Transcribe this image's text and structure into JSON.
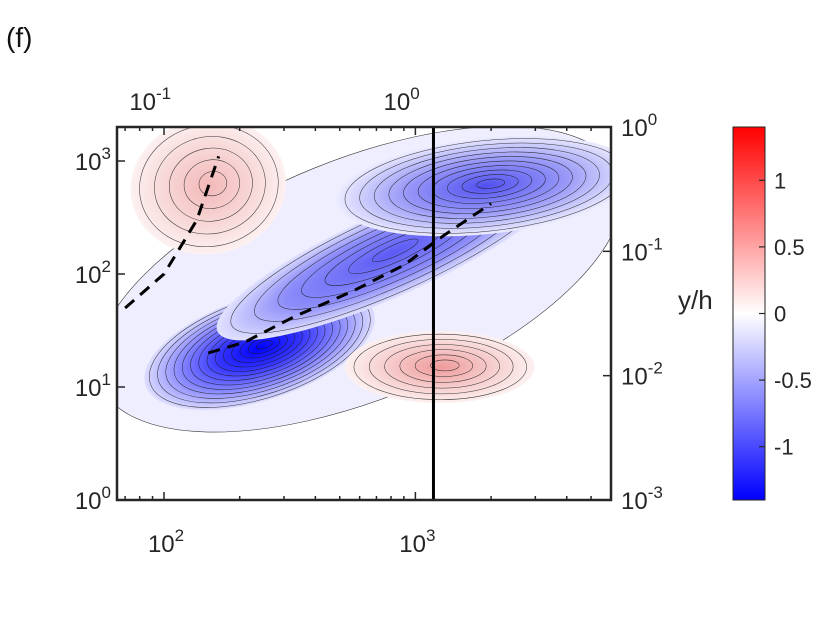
{
  "panel_label": "(f)",
  "chart_data": {
    "type": "heatmap",
    "subtype": "filled-contour",
    "panel": "(f)",
    "x_scale": "log",
    "y_scale": "log",
    "xlim": [
      65,
      6000
    ],
    "ylim": [
      1,
      2000
    ],
    "x_ticks": [
      {
        "value": 100,
        "label": "10",
        "exp": "2"
      },
      {
        "value": 1000,
        "label": "10",
        "exp": "3"
      }
    ],
    "y_ticks": [
      {
        "value": 1,
        "label": "10",
        "exp": "0"
      },
      {
        "value": 10,
        "label": "10",
        "exp": "1"
      },
      {
        "value": 100,
        "label": "10",
        "exp": "2"
      },
      {
        "value": 1000,
        "label": "10",
        "exp": "3"
      }
    ],
    "top_axis": {
      "scale": "log",
      "ticks": [
        {
          "value": 0.1,
          "label": "10",
          "exp": "-1"
        },
        {
          "value": 1,
          "label": "10",
          "exp": "0"
        }
      ]
    },
    "right_axis": {
      "label": "y/h",
      "scale": "log",
      "ticks": [
        {
          "value": 0.001,
          "label": "10",
          "exp": "-3"
        },
        {
          "value": 0.01,
          "label": "10",
          "exp": "-2"
        },
        {
          "value": 0.1,
          "label": "10",
          "exp": "-1"
        },
        {
          "value": 1,
          "label": "10",
          "exp": "0"
        }
      ]
    },
    "colorbar": {
      "range": [
        -1.4,
        1.4
      ],
      "colormap": [
        "#0000ff",
        "#ffffff",
        "#ff0000"
      ],
      "ticks": [
        {
          "value": 1,
          "label": "1"
        },
        {
          "value": 0.5,
          "label": "0.5"
        },
        {
          "value": 0,
          "label": "0"
        },
        {
          "value": -0.5,
          "label": "-0.5"
        },
        {
          "value": -1,
          "label": "-1"
        }
      ]
    },
    "vertical_line_x": 1180,
    "dashed_lines": [
      {
        "x": [
          70,
          100,
          135,
          165
        ],
        "y": [
          50,
          100,
          300,
          1100
        ]
      },
      {
        "x": [
          150,
          210,
          330,
          560,
          900,
          1300,
          2000
        ],
        "y": [
          20,
          25,
          42,
          70,
          120,
          220,
          420
        ]
      }
    ],
    "contour_blobs": [
      {
        "region": "main-negative",
        "sign": "negative",
        "peak_x": 240,
        "peak_y": 22,
        "peak_value": -1.35
      },
      {
        "region": "ridge-negative",
        "sign": "negative",
        "peak_x": 800,
        "peak_y": 150,
        "peak_value": -0.75
      },
      {
        "region": "outer-negative",
        "sign": "negative",
        "peak_x": 1900,
        "peak_y": 600,
        "peak_value": -0.85
      },
      {
        "region": "upper-positive",
        "sign": "positive",
        "peak_x": 150,
        "peak_y": 600,
        "peak_value": 0.25
      },
      {
        "region": "lower-positive",
        "sign": "positive",
        "peak_x": 1250,
        "peak_y": 15,
        "peak_value": 0.3
      }
    ]
  }
}
